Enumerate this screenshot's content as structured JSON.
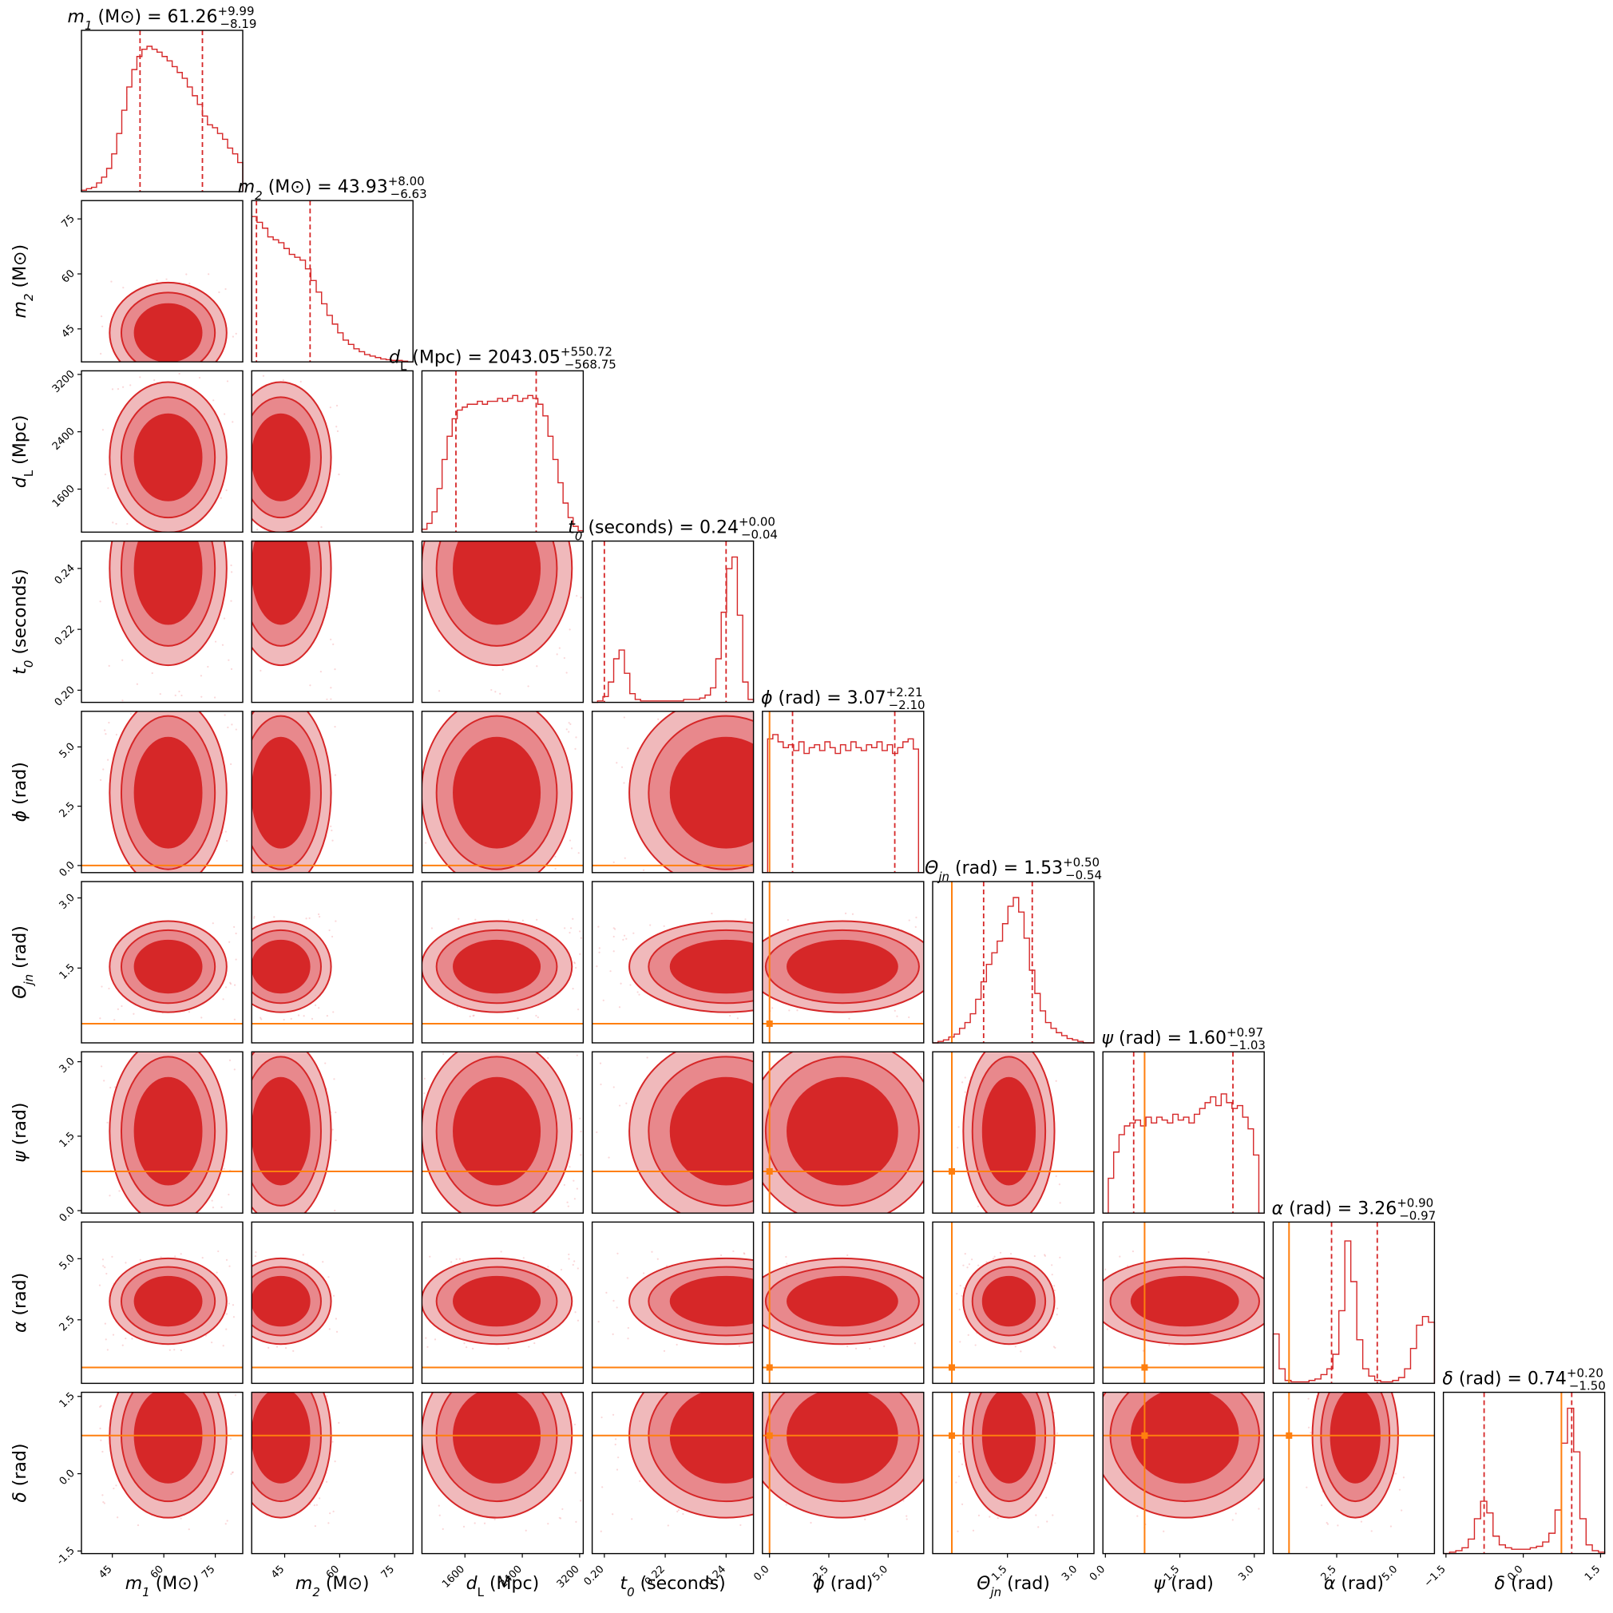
{
  "chart_data": {
    "type": "corner",
    "colors": {
      "posterior": "#d62728",
      "contour_outer": "#f0b9bb",
      "contour_mid": "#e8888c",
      "truth": "#ff7f0e"
    },
    "parameters": [
      {
        "key": "m1",
        "label": "m_1 (M_⊙)",
        "title": "m_1 (M_⊙) = 61.26^{+9.99}_{-8.19}",
        "median": 61.26,
        "plus": 9.99,
        "minus": 8.19,
        "range": [
          36,
          83
        ],
        "ticks": [
          45,
          60,
          75
        ],
        "truth": null,
        "hist": [
          0.01,
          0.02,
          0.03,
          0.06,
          0.1,
          0.16,
          0.26,
          0.4,
          0.56,
          0.72,
          0.84,
          0.93,
          0.98,
          1.0,
          0.98,
          0.96,
          0.93,
          0.9,
          0.86,
          0.82,
          0.78,
          0.72,
          0.66,
          0.6,
          0.52,
          0.46,
          0.44,
          0.4,
          0.36,
          0.3,
          0.26,
          0.2
        ]
      },
      {
        "key": "m2",
        "label": "m_2 (M_⊙)",
        "title": "m_2 (M_⊙) = 43.93^{+8.00}_{-6.63}",
        "median": 43.93,
        "plus": 8.0,
        "minus": 6.63,
        "range": [
          36,
          80
        ],
        "ticks": [
          45,
          60,
          75
        ],
        "truth": null,
        "hist": [
          1.0,
          0.96,
          0.92,
          0.86,
          0.84,
          0.82,
          0.78,
          0.74,
          0.72,
          0.7,
          0.64,
          0.56,
          0.48,
          0.4,
          0.32,
          0.26,
          0.2,
          0.15,
          0.12,
          0.09,
          0.07,
          0.05,
          0.04,
          0.03,
          0.02,
          0.015,
          0.01,
          0.01,
          0.005,
          0.0
        ]
      },
      {
        "key": "dL",
        "label": "d_L (Mpc)",
        "title": "d_L (Mpc) = 2043.05^{+550.72}_{-568.75}",
        "median": 2043.05,
        "plus": 550.72,
        "minus": 568.75,
        "range": [
          1000,
          3250
        ],
        "ticks": [
          1600,
          2400,
          3200
        ],
        "truth": null,
        "hist": [
          0.02,
          0.06,
          0.14,
          0.3,
          0.5,
          0.66,
          0.78,
          0.84,
          0.86,
          0.88,
          0.88,
          0.9,
          0.88,
          0.9,
          0.9,
          0.92,
          0.9,
          0.92,
          0.94,
          0.9,
          0.92,
          0.94,
          0.92,
          0.88,
          0.8,
          0.66,
          0.5,
          0.34,
          0.2,
          0.1,
          0.04,
          0.01
        ]
      },
      {
        "key": "t0",
        "label": "t_0 (seconds)",
        "title": "t_0 (seconds) = 0.24^{+0.00}_{-0.04}",
        "median": 0.24,
        "plus": 0.0,
        "minus": 0.04,
        "range": [
          0.196,
          0.249
        ],
        "ticks": [
          0.2,
          0.22,
          0.24
        ],
        "truth": null,
        "hist": [
          0.0,
          0.01,
          0.04,
          0.14,
          0.3,
          0.36,
          0.2,
          0.06,
          0.02,
          0.01,
          0.01,
          0.01,
          0.01,
          0.01,
          0.01,
          0.01,
          0.01,
          0.02,
          0.02,
          0.02,
          0.03,
          0.05,
          0.1,
          0.3,
          0.62,
          0.92,
          1.0,
          0.6,
          0.14,
          0.02
        ]
      },
      {
        "key": "phi",
        "label": "ϕ (rad)",
        "title": "ϕ (rad) = 3.07^{+2.21}_{-2.10}",
        "median": 3.07,
        "plus": 2.21,
        "minus": 2.1,
        "range": [
          -0.3,
          6.5
        ],
        "ticks": [
          0.0,
          2.5,
          5.0
        ],
        "truth": 0.0,
        "hist": [
          0.0,
          0.92,
          0.95,
          0.9,
          0.86,
          0.88,
          0.84,
          0.9,
          0.82,
          0.86,
          0.88,
          0.84,
          0.9,
          0.86,
          0.82,
          0.88,
          0.84,
          0.9,
          0.86,
          0.84,
          0.88,
          0.86,
          0.9,
          0.84,
          0.88,
          0.82,
          0.86,
          0.9,
          0.92,
          0.85,
          0.0
        ]
      },
      {
        "key": "theta_jn",
        "label": "Θ_jn (rad)",
        "title": "Θ_jn (rad) = 1.53^{+0.50}_{-0.54}",
        "median": 1.53,
        "plus": 0.5,
        "minus": 0.54,
        "range": [
          -0.1,
          3.35
        ],
        "ticks": [
          1.5,
          3.0
        ],
        "truth": 0.31,
        "hist": [
          0.0,
          0.01,
          0.02,
          0.04,
          0.06,
          0.1,
          0.14,
          0.2,
          0.3,
          0.42,
          0.54,
          0.62,
          0.7,
          0.82,
          0.94,
          1.0,
          0.9,
          0.72,
          0.5,
          0.34,
          0.22,
          0.14,
          0.1,
          0.07,
          0.05,
          0.03,
          0.02,
          0.01,
          0.0,
          0.0
        ]
      },
      {
        "key": "psi",
        "label": "ψ (rad)",
        "title": "ψ (rad) = 1.60^{+0.97}_{-1.03}",
        "median": 1.6,
        "plus": 0.97,
        "minus": 1.03,
        "range": [
          -0.05,
          3.2
        ],
        "ticks": [
          0.0,
          1.5,
          3.0
        ],
        "truth": 0.79,
        "hist": [
          0.0,
          0.24,
          0.42,
          0.54,
          0.6,
          0.62,
          0.64,
          0.6,
          0.66,
          0.62,
          0.66,
          0.64,
          0.62,
          0.68,
          0.64,
          0.66,
          0.62,
          0.68,
          0.72,
          0.76,
          0.8,
          0.74,
          0.82,
          0.76,
          0.72,
          0.74,
          0.66,
          0.58,
          0.4,
          0.0
        ]
      },
      {
        "key": "alpha",
        "label": "α (rad)",
        "title": "α (rad) = 3.26^{+0.90}_{-0.97}",
        "median": 3.26,
        "plus": 0.9,
        "minus": 0.97,
        "range": [
          -0.1,
          6.5
        ],
        "ticks": [
          2.5,
          5.0
        ],
        "truth": 0.55,
        "hist": [
          0.34,
          0.1,
          0.02,
          0.01,
          0.01,
          0.01,
          0.02,
          0.03,
          0.06,
          0.1,
          0.2,
          0.5,
          0.98,
          0.7,
          0.3,
          0.1,
          0.05,
          0.02,
          0.01,
          0.01,
          0.02,
          0.04,
          0.1,
          0.24,
          0.4,
          0.46,
          0.42
        ]
      },
      {
        "key": "delta",
        "label": "δ (rad)",
        "title": "δ (rad) = 0.74^{+0.20}_{-1.50}",
        "median": 0.74,
        "plus": 0.2,
        "minus": 1.5,
        "range": [
          -1.55,
          1.58
        ],
        "ticks": [
          -1.5,
          0.0,
          1.5
        ],
        "truth": 0.74,
        "hist": [
          0.0,
          0.01,
          0.02,
          0.04,
          0.1,
          0.24,
          0.36,
          0.28,
          0.12,
          0.06,
          0.04,
          0.03,
          0.03,
          0.03,
          0.04,
          0.05,
          0.08,
          0.14,
          0.3,
          0.76,
          1.0,
          0.7,
          0.24,
          0.06,
          0.02,
          0.01
        ]
      }
    ]
  }
}
